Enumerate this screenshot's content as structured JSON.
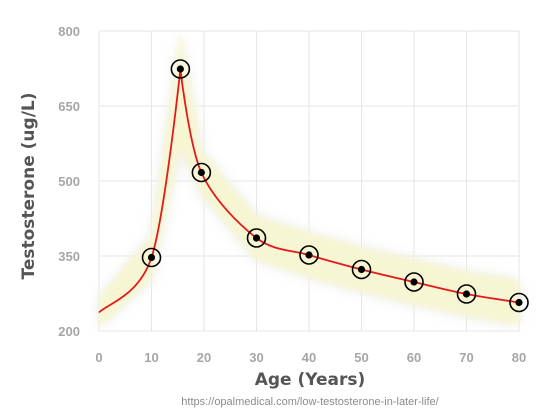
{
  "chart_data": {
    "type": "line",
    "xlabel": "Age (Years)",
    "ylabel": "Testosterone (ug/L)",
    "xlim": [
      0,
      80
    ],
    "ylim": [
      200,
      800
    ],
    "xticks": [
      0,
      10,
      20,
      30,
      40,
      50,
      60,
      70,
      80
    ],
    "yticks": [
      200,
      350,
      500,
      650,
      800
    ],
    "grid": true,
    "series": [
      {
        "points": [
          {
            "x": 10,
            "y": 347
          },
          {
            "x": 15.5,
            "y": 724
          },
          {
            "x": 19.5,
            "y": 517
          },
          {
            "x": 30,
            "y": 386
          },
          {
            "x": 40,
            "y": 352
          },
          {
            "x": 50,
            "y": 323
          },
          {
            "x": 60,
            "y": 298
          },
          {
            "x": 70,
            "y": 274
          },
          {
            "x": 80,
            "y": 257
          }
        ],
        "curve_start": {
          "x": 0,
          "y": 237
        }
      }
    ],
    "colors": {
      "line": "#e31a1c",
      "marker": "#000000",
      "band": "#f7f7d2",
      "band_halo": "#ececec",
      "grid": "#e6e6e6"
    }
  },
  "source_url": "https://opalmedical.com/low-testosterone-in-later-life/"
}
